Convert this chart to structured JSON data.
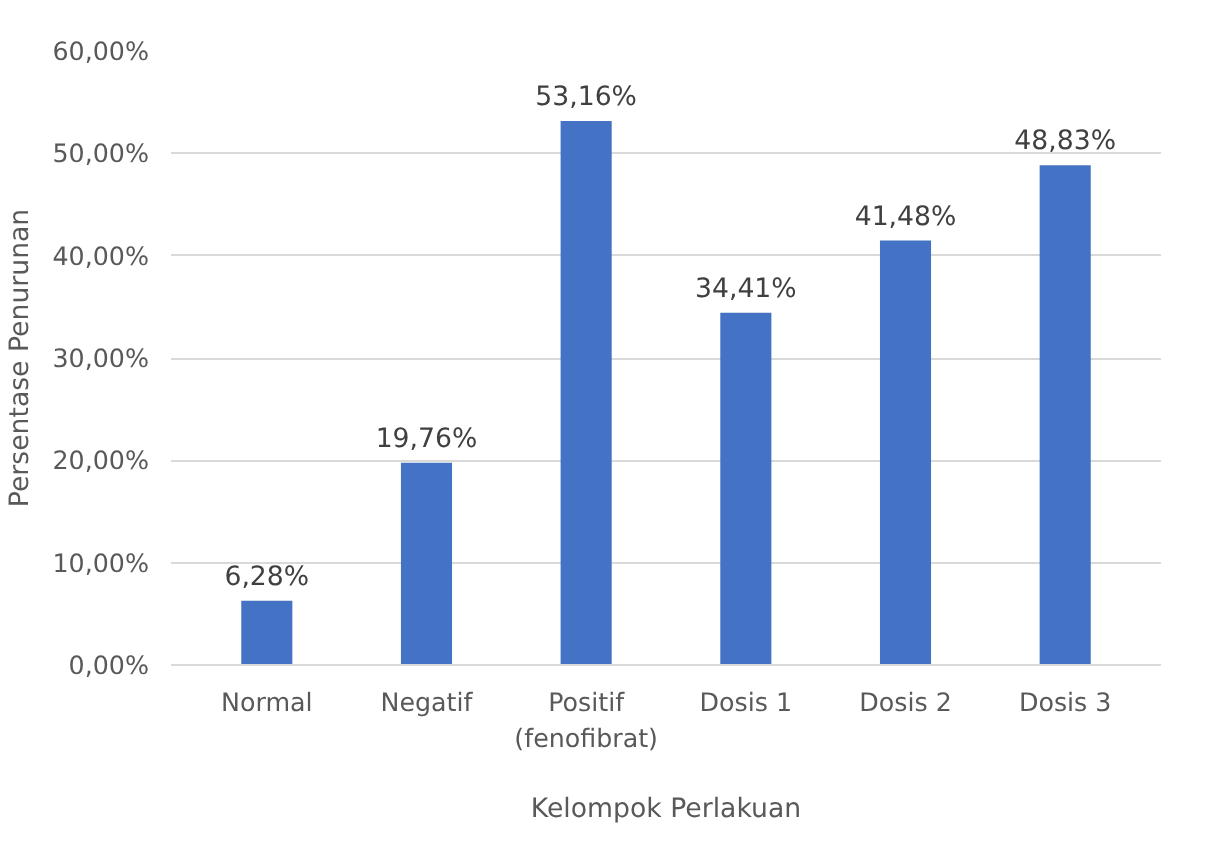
{
  "chart_data": {
    "type": "bar",
    "xlabel": "Kelompok Perlakuan",
    "ylabel": "Persentase Penurunan",
    "categories": [
      "Normal",
      "Negatif",
      "Positif\n(fenofibrat)",
      "Dosis 1",
      "Dosis 2",
      "Dosis 3"
    ],
    "values": [
      6.28,
      19.76,
      53.16,
      34.41,
      41.48,
      48.83
    ],
    "value_labels": [
      "6,28%",
      "19,76%",
      "53,16%",
      "34,41%",
      "41,48%",
      "48,83%"
    ],
    "color": "#4472c4",
    "ylim": [
      0,
      60
    ],
    "yticks": [
      {
        "value": 0,
        "label": "0,00%"
      },
      {
        "value": 10,
        "label": "10,00%"
      },
      {
        "value": 20,
        "label": "20,00%"
      },
      {
        "value": 30,
        "label": "30,00%"
      },
      {
        "value": 40,
        "label": "40,00%"
      },
      {
        "value": 50,
        "label": "50,00%"
      },
      {
        "value": 60,
        "label": "60,00%"
      }
    ],
    "grid": "y"
  }
}
